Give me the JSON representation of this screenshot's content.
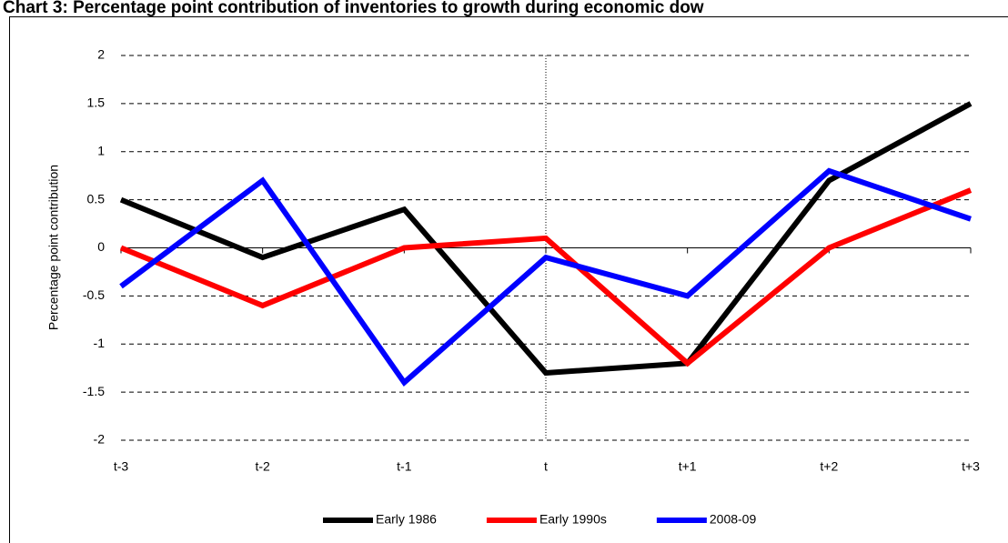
{
  "chart_data": {
    "type": "line",
    "title": "Chart 3: Percentage point contribution of inventories to growth during economic dow",
    "y_label": "Percentage point contribution",
    "categories": [
      "t-3",
      "t-2",
      "t-1",
      "t",
      "t+1",
      "t+2",
      "t+3"
    ],
    "series": [
      {
        "name": "Early 1986",
        "color": "#000000",
        "values": [
          0.5,
          -0.1,
          0.4,
          -1.3,
          -1.2,
          0.7,
          1.5
        ]
      },
      {
        "name": "Early 1990s",
        "color": "#ff0000",
        "values": [
          0,
          -0.6,
          0,
          0.1,
          -1.2,
          0,
          0.6
        ]
      },
      {
        "name": "2008-09",
        "color": "#0000ff",
        "values": [
          -0.4,
          0.7,
          -1.4,
          -0.1,
          -0.5,
          0.8,
          0.3
        ]
      }
    ],
    "ylim": [
      -2,
      2
    ],
    "yticks": [
      -2,
      -1.5,
      -1,
      -0.5,
      0,
      0.5,
      1,
      1.5,
      2
    ],
    "grid": true,
    "legend": "bottom"
  }
}
